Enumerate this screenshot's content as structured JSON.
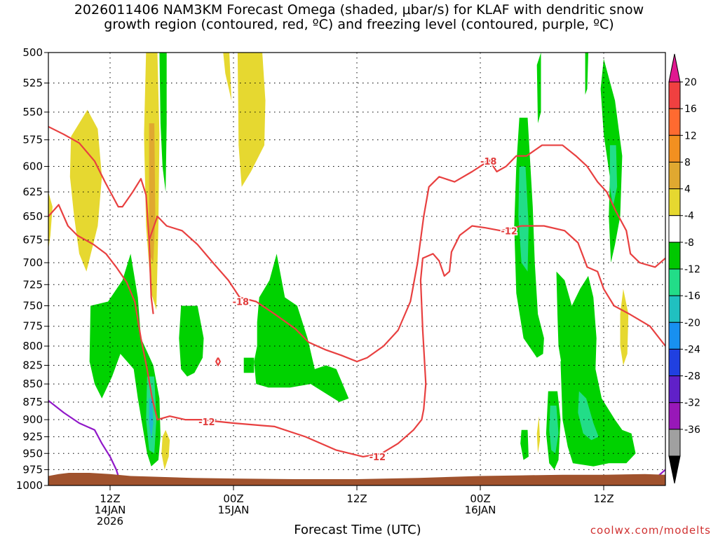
{
  "chart_data": {
    "type": "heatmap",
    "title_line1": "2026011406 NAM3KM Forecast Omega (shaded, μbar/s) for KLAF with dendritic snow",
    "title_line2": "growth region (contoured, red, ºC) and freezing level (contoured, purple, ºC)",
    "xlabel": "Forecast Time (UTC)",
    "credit": "coolwx.com/modelts",
    "yaxis": {
      "scale": "log-pressure",
      "range": [
        1000,
        500
      ],
      "ticks": [
        500,
        525,
        550,
        575,
        600,
        625,
        650,
        675,
        700,
        725,
        750,
        775,
        800,
        825,
        850,
        875,
        900,
        925,
        950,
        975,
        1000
      ]
    },
    "xaxis": {
      "range_hours": [
        6,
        66
      ],
      "ticks": [
        {
          "hour": 12,
          "lines": [
            "12Z",
            "14JAN",
            "2026"
          ]
        },
        {
          "hour": 24,
          "lines": [
            "00Z",
            "15JAN"
          ]
        },
        {
          "hour": 36,
          "lines": [
            "12Z"
          ]
        },
        {
          "hour": 48,
          "lines": [
            "00Z",
            "16JAN"
          ]
        },
        {
          "hour": 60,
          "lines": [
            "12Z"
          ]
        }
      ]
    },
    "colorbar": {
      "labels": [
        "20",
        "16",
        "12",
        "8",
        "4",
        "-4",
        "-8",
        "-12",
        "-16",
        "-20",
        "-24",
        "-28",
        "-32",
        "-36"
      ],
      "colors": [
        "#f04040",
        "#ff6a30",
        "#f29020",
        "#e0a830",
        "#e6d830",
        "#ffffff",
        "#00c800",
        "#22dd88",
        "#20c0c0",
        "#1890f0",
        "#2040e0",
        "#6020c8",
        "#9818b8",
        "#a0a0a0"
      ],
      "top_color": "#e01890",
      "bottom_color": "#000000"
    },
    "contour_labels": [
      {
        "text": "-18",
        "hour": 24.7,
        "p": 745
      },
      {
        "text": "-18",
        "hour": 48.8,
        "p": 595
      },
      {
        "text": "-12",
        "hour": 50.8,
        "p": 665
      },
      {
        "text": "-12",
        "hour": 21.4,
        "p": 903
      },
      {
        "text": "-12",
        "hour": 38.0,
        "p": 955
      }
    ],
    "shading": {
      "negative_omega_color": "#00d200",
      "stronger_negative_color": "#22dd88",
      "strongest_negative_color": "#20b8d0",
      "positive_omega_color": "#e6d830",
      "strong_positive_color": "#e0a830",
      "terrain_color": "#a0522d"
    },
    "contours": {
      "dgz_color": "#e84040",
      "freezing_color": "#9018c8"
    }
  }
}
